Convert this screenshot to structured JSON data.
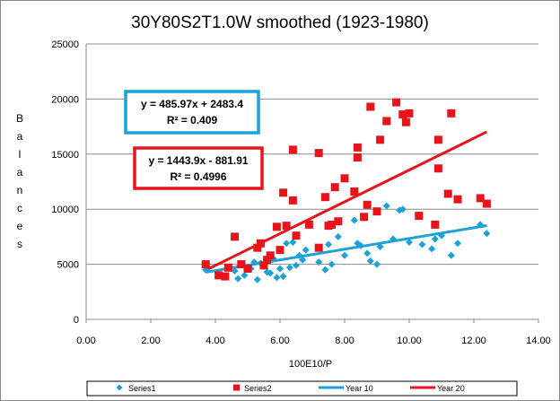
{
  "chart_data": {
    "type": "scatter",
    "title": "30Y80S2T1.0W smoothed (1923-1980)",
    "xlabel": "100E10/P",
    "ylabel": "Balances",
    "xlim": [
      0,
      14
    ],
    "ylim": [
      0,
      25000
    ],
    "x_ticks": [
      "0.00",
      "2.00",
      "4.00",
      "6.00",
      "8.00",
      "10.00",
      "12.00",
      "14.00"
    ],
    "y_ticks": [
      "0",
      "5000",
      "10000",
      "15000",
      "20000",
      "25000"
    ],
    "grid": "horizontal",
    "legend_position": "bottom",
    "colors": {
      "series1": "#1aa3d9",
      "series2": "#e8141c",
      "year10": "#1aa3d9",
      "year20": "#e8141c"
    },
    "series": [
      {
        "name": "Series1",
        "marker": "diamond",
        "points": [
          [
            3.7,
            4500
          ],
          [
            4.1,
            4100
          ],
          [
            4.3,
            3900
          ],
          [
            4.6,
            4400
          ],
          [
            4.7,
            3700
          ],
          [
            4.9,
            4000
          ],
          [
            5.1,
            4600
          ],
          [
            5.2,
            5200
          ],
          [
            5.3,
            3600
          ],
          [
            5.5,
            4800
          ],
          [
            5.6,
            4300
          ],
          [
            5.8,
            5500
          ],
          [
            5.9,
            3800
          ],
          [
            6.0,
            4600
          ],
          [
            6.1,
            3900
          ],
          [
            6.3,
            4700
          ],
          [
            6.4,
            7000
          ],
          [
            6.5,
            4900
          ],
          [
            6.6,
            5800
          ],
          [
            6.8,
            6300
          ],
          [
            7.2,
            5200
          ],
          [
            7.4,
            4500
          ],
          [
            7.5,
            6800
          ],
          [
            7.6,
            5000
          ],
          [
            7.8,
            7500
          ],
          [
            8.0,
            5800
          ],
          [
            8.3,
            9000
          ],
          [
            8.5,
            6700
          ],
          [
            8.7,
            6000
          ],
          [
            8.8,
            5300
          ],
          [
            9.0,
            5000
          ],
          [
            9.1,
            6600
          ],
          [
            9.3,
            10300
          ],
          [
            9.5,
            7300
          ],
          [
            9.8,
            10000
          ],
          [
            10.0,
            7000
          ],
          [
            10.4,
            6800
          ],
          [
            10.7,
            6400
          ],
          [
            10.8,
            7300
          ],
          [
            11.0,
            7600
          ],
          [
            11.3,
            5800
          ],
          [
            11.5,
            6900
          ],
          [
            12.2,
            8600
          ],
          [
            12.4,
            7800
          ],
          [
            5.4,
            5100
          ],
          [
            6.2,
            6900
          ],
          [
            8.4,
            6900
          ],
          [
            9.7,
            9900
          ],
          [
            5.7,
            4200
          ],
          [
            6.7,
            5400
          ]
        ]
      },
      {
        "name": "Series2",
        "marker": "square",
        "points": [
          [
            3.7,
            5000
          ],
          [
            4.1,
            4000
          ],
          [
            4.3,
            3900
          ],
          [
            4.6,
            7500
          ],
          [
            4.8,
            5000
          ],
          [
            5.0,
            4600
          ],
          [
            5.3,
            6500
          ],
          [
            5.4,
            6900
          ],
          [
            5.5,
            4900
          ],
          [
            5.7,
            5800
          ],
          [
            5.9,
            8400
          ],
          [
            6.0,
            6300
          ],
          [
            6.1,
            11500
          ],
          [
            6.2,
            8500
          ],
          [
            6.4,
            15400
          ],
          [
            6.4,
            10800
          ],
          [
            6.5,
            7600
          ],
          [
            7.2,
            15100
          ],
          [
            7.2,
            6500
          ],
          [
            7.4,
            11100
          ],
          [
            7.5,
            8500
          ],
          [
            7.6,
            8600
          ],
          [
            7.7,
            12000
          ],
          [
            7.8,
            8900
          ],
          [
            8.0,
            12800
          ],
          [
            8.3,
            11600
          ],
          [
            8.4,
            15600
          ],
          [
            8.4,
            14700
          ],
          [
            8.7,
            10400
          ],
          [
            8.8,
            19300
          ],
          [
            9.0,
            9800
          ],
          [
            9.1,
            16300
          ],
          [
            9.3,
            18000
          ],
          [
            9.6,
            19700
          ],
          [
            9.8,
            18600
          ],
          [
            9.9,
            17900
          ],
          [
            10.0,
            18700
          ],
          [
            10.3,
            9400
          ],
          [
            10.8,
            8600
          ],
          [
            10.9,
            16300
          ],
          [
            10.9,
            13700
          ],
          [
            11.2,
            11400
          ],
          [
            11.3,
            18700
          ],
          [
            11.5,
            10900
          ],
          [
            12.2,
            11000
          ],
          [
            12.4,
            10500
          ],
          [
            8.6,
            9300
          ],
          [
            5.6,
            5400
          ],
          [
            4.4,
            4700
          ],
          [
            6.9,
            8600
          ]
        ]
      },
      {
        "name": "Year 10",
        "type": "line",
        "x": [
          3.7,
          12.4
        ],
        "y": [
          4281.5,
          8509.4
        ]
      },
      {
        "name": "Year 20",
        "type": "line",
        "x": [
          3.7,
          12.4
        ],
        "y": [
          4460.5,
          17022.5
        ]
      }
    ],
    "annotations": [
      {
        "line1": "y = 485.97x + 2483.4",
        "line2": "R² = 0.409",
        "color": "#1aa3d9"
      },
      {
        "line1": "y = 1443.9x - 881.91",
        "line2": "R² = 0.4996",
        "color": "#e8141c"
      }
    ]
  }
}
